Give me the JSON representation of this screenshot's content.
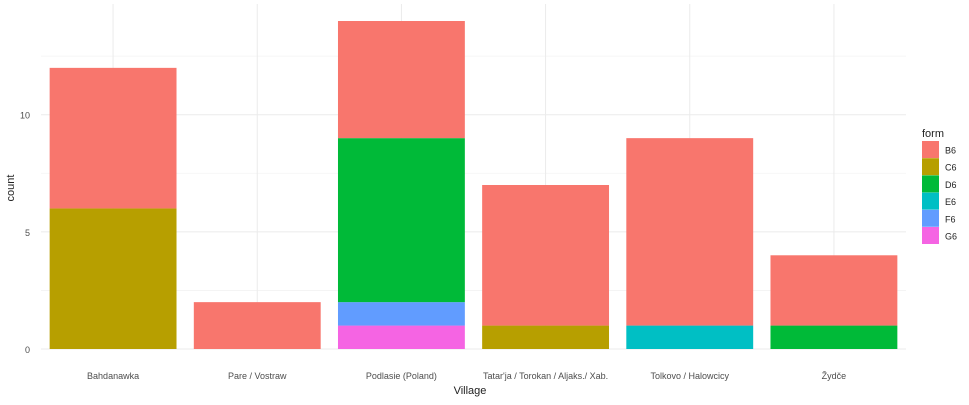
{
  "chart_data": {
    "type": "bar",
    "stacked": true,
    "title": "",
    "xlabel": "Village",
    "ylabel": "count",
    "categories": [
      "Bahdanawka",
      "Pare / Vostraw",
      "Podlasie (Poland)",
      "Tatar'ja / Torokan / Aljaks./ Xab.",
      "Tolkovo / Halowcicy",
      "Žydče"
    ],
    "series": [
      {
        "name": "B6",
        "color": "#F8766D",
        "values": [
          6,
          2,
          5,
          6,
          8,
          3
        ]
      },
      {
        "name": "C6",
        "color": "#B79F00",
        "values": [
          6,
          0,
          0,
          1,
          0,
          0
        ]
      },
      {
        "name": "D6",
        "color": "#00BA38",
        "values": [
          0,
          0,
          7,
          0,
          0,
          1
        ]
      },
      {
        "name": "E6",
        "color": "#00BFC4",
        "values": [
          0,
          0,
          0,
          0,
          1,
          0
        ]
      },
      {
        "name": "F6",
        "color": "#619CFF",
        "values": [
          0,
          0,
          1,
          0,
          0,
          0
        ]
      },
      {
        "name": "G6",
        "color": "#F564E3",
        "values": [
          0,
          0,
          1,
          0,
          0,
          0
        ]
      }
    ],
    "stack_order_bottom_to_top": [
      "G6",
      "F6",
      "E6",
      "D6",
      "C6",
      "B6"
    ],
    "ylim": [
      0,
      14
    ],
    "yticks": [
      0,
      5,
      10
    ],
    "grid": true,
    "legend": {
      "title": "form",
      "position": "right"
    }
  }
}
